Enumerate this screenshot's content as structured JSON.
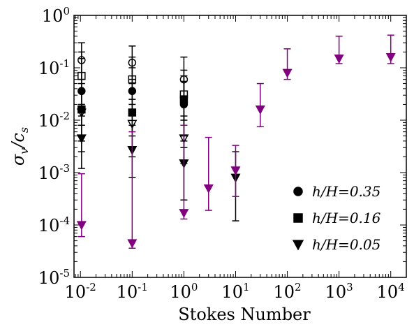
{
  "chart_data": {
    "type": "scatter",
    "title": "",
    "xlabel": "Stokes Number",
    "ylabel": "σ_v/c_s",
    "x_scale": "log",
    "y_scale": "log",
    "xlim": [
      0.0075,
      20000
    ],
    "ylim": [
      1e-05,
      1
    ],
    "x_ticks": [
      {
        "base": "10",
        "exp": "-2",
        "value": 0.01
      },
      {
        "base": "10",
        "exp": "-1",
        "value": 0.1
      },
      {
        "base": "10",
        "exp": "0",
        "value": 1
      },
      {
        "base": "10",
        "exp": "1",
        "value": 10
      },
      {
        "base": "10",
        "exp": "2",
        "value": 100
      },
      {
        "base": "10",
        "exp": "3",
        "value": 1000
      },
      {
        "base": "10",
        "exp": "4",
        "value": 10000
      }
    ],
    "y_ticks": [
      {
        "base": "10",
        "exp": "0",
        "value": 1
      },
      {
        "base": "10",
        "exp": "-1",
        "value": 0.1
      },
      {
        "base": "10",
        "exp": "-2",
        "value": 0.01
      },
      {
        "base": "10",
        "exp": "-3",
        "value": 0.001
      },
      {
        "base": "10",
        "exp": "-4",
        "value": 0.0001
      },
      {
        "base": "10",
        "exp": "-5",
        "value": 1e-05
      }
    ],
    "grid": false,
    "legend": {
      "position": "lower-right",
      "entries": [
        {
          "marker": "circle",
          "label": "h/H=0.35"
        },
        {
          "marker": "square",
          "label": "h/H=0.16"
        },
        {
          "marker": "triangle-down",
          "label": "h/H=0.05"
        }
      ]
    },
    "colors": {
      "black": "#000000",
      "purple": "#800080"
    },
    "series": [
      {
        "marker": "circle",
        "fill": "open",
        "color": "#000000",
        "points": [
          {
            "x": 0.0105,
            "y": 0.14,
            "lo": 0.06,
            "hi": 0.3
          },
          {
            "x": 0.1,
            "y": 0.125,
            "lo": 0.05,
            "hi": 0.26
          },
          {
            "x": 1.0,
            "y": 0.06,
            "lo": 0.022,
            "hi": 0.16
          }
        ]
      },
      {
        "marker": "square",
        "fill": "open",
        "color": "#000000",
        "points": [
          {
            "x": 0.0105,
            "y": 0.07,
            "lo": 0.02,
            "hi": 0.2
          },
          {
            "x": 0.1,
            "y": 0.06,
            "lo": 0.02,
            "hi": 0.16
          },
          {
            "x": 1.0,
            "y": 0.031,
            "lo": 0.01,
            "hi": 0.09
          }
        ]
      },
      {
        "marker": "circle",
        "fill": "filled",
        "color": "#000000",
        "points": [
          {
            "x": 0.0105,
            "y": 0.036,
            "lo": 0.008,
            "hi": 0.15
          },
          {
            "x": 0.1,
            "y": 0.036,
            "lo": 0.005,
            "hi": 0.1
          },
          {
            "x": 1.0,
            "y": 0.02,
            "lo": 0.003,
            "hi": 0.055
          }
        ]
      },
      {
        "marker": "square",
        "fill": "filled",
        "color": "#000000",
        "points": [
          {
            "x": 0.0105,
            "y": 0.016,
            "lo": 0.004,
            "hi": 0.05
          },
          {
            "x": 0.1,
            "y": 0.014,
            "lo": 0.003,
            "hi": 0.06
          },
          {
            "x": 1.0,
            "y": 0.025,
            "lo": 0.005,
            "hi": 0.07
          }
        ]
      },
      {
        "marker": "triangle-down",
        "fill": "open",
        "color": "#000000",
        "points": [
          {
            "x": 0.0105,
            "y": 0.014,
            "lo": 0.0025,
            "hi": 0.035
          },
          {
            "x": 0.1,
            "y": 0.0085,
            "lo": 0.002,
            "hi": 0.025
          },
          {
            "x": 1.0,
            "y": 0.0045,
            "lo": 0.0015,
            "hi": 0.012
          }
        ]
      },
      {
        "marker": "triangle-down",
        "fill": "filled",
        "color": "#000000",
        "points": [
          {
            "x": 0.0105,
            "y": 0.0045,
            "lo": 0.0012,
            "hi": 0.012
          },
          {
            "x": 0.1,
            "y": 0.0027,
            "lo": 0.0008,
            "hi": 0.008
          },
          {
            "x": 1.0,
            "y": 0.0015,
            "lo": 0.0003,
            "hi": 0.004
          },
          {
            "x": 10,
            "y": 0.0008,
            "lo": 0.00012,
            "hi": 0.0025
          }
        ]
      },
      {
        "marker": "triangle-down",
        "fill": "filled",
        "color": "#800080",
        "points": [
          {
            "x": 0.0105,
            "y": 0.0001,
            "lo": 6e-05,
            "hi": 0.00095
          },
          {
            "x": 0.1,
            "y": 4.5e-05,
            "lo": 3.6e-05,
            "hi": 0.006
          },
          {
            "x": 1.0,
            "y": 0.00017,
            "lo": 0.00013,
            "hi": 0.008
          },
          {
            "x": 3,
            "y": 0.0005,
            "lo": 0.00019,
            "hi": 0.0047
          },
          {
            "x": 10,
            "y": 0.0011,
            "lo": 0.00035,
            "hi": 0.0033
          },
          {
            "x": 30,
            "y": 0.016,
            "lo": 0.0075,
            "hi": 0.05
          },
          {
            "x": 100,
            "y": 0.08,
            "lo": 0.06,
            "hi": 0.23
          },
          {
            "x": 1000,
            "y": 0.15,
            "lo": 0.12,
            "hi": 0.4
          },
          {
            "x": 10000,
            "y": 0.16,
            "lo": 0.12,
            "hi": 0.42
          }
        ]
      }
    ]
  }
}
